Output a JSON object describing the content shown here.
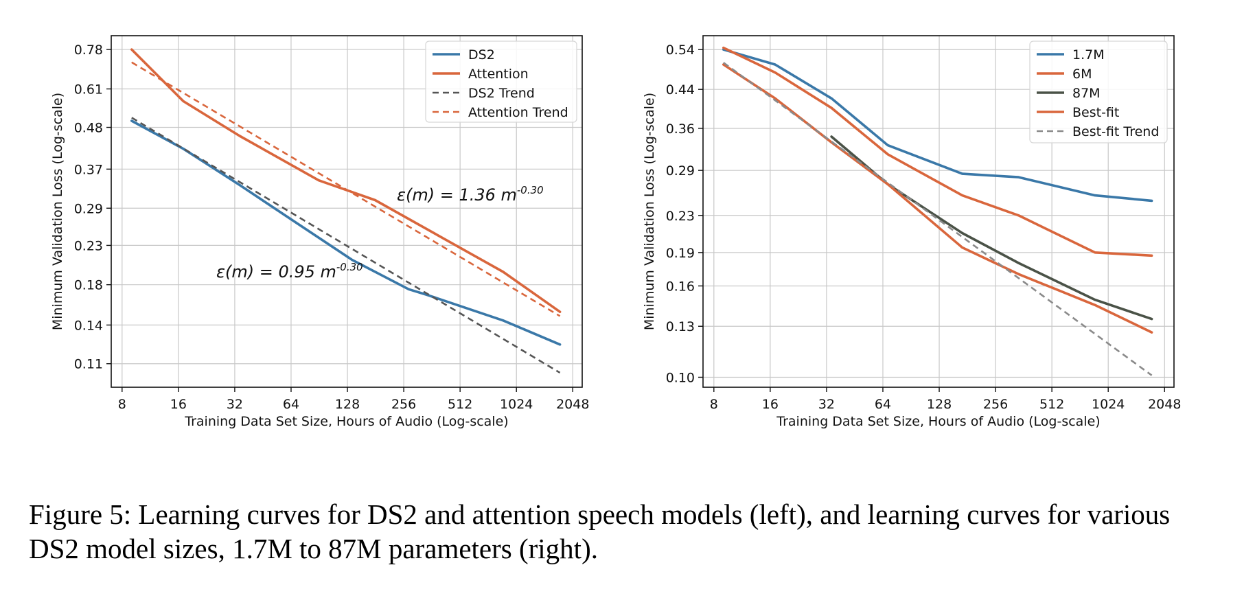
{
  "chart_data": [
    {
      "type": "line",
      "xlabel": "Training Data Set Size, Hours of Audio (Log-scale)",
      "ylabel": "Minimum Validation Loss (Log-scale)",
      "xscale": "log2",
      "yscale": "log",
      "xlim": [
        7,
        2300
      ],
      "ylim": [
        0.095,
        0.85
      ],
      "xticks": [
        8,
        16,
        32,
        64,
        128,
        256,
        512,
        1024,
        2048
      ],
      "xtick_labels": [
        "8",
        "16",
        "32",
        "64",
        "128",
        "256",
        "512",
        "1024",
        "2048"
      ],
      "yticks": [
        0.11,
        0.14,
        0.18,
        0.23,
        0.29,
        0.37,
        0.48,
        0.61,
        0.78
      ],
      "ytick_labels": [
        "0.11",
        "0.14",
        "0.18",
        "0.23",
        "0.29",
        "0.37",
        "0.48",
        "0.61",
        "0.78"
      ],
      "grid": true,
      "legend_position": "upper-right",
      "series": [
        {
          "name": "DS2",
          "color": "#3a78a8",
          "style": "solid",
          "x": [
            9,
            17,
            34,
            68,
            136,
            272,
            340,
            870,
            1750
          ],
          "y": [
            0.5,
            0.42,
            0.335,
            0.265,
            0.21,
            0.175,
            0.169,
            0.144,
            0.124
          ]
        },
        {
          "name": "Attention",
          "color": "#d9663c",
          "style": "solid",
          "x": [
            9,
            17,
            34,
            90,
            180,
            870,
            1750
          ],
          "y": [
            0.78,
            0.565,
            0.455,
            0.345,
            0.305,
            0.195,
            0.152
          ]
        },
        {
          "name": "DS2 Trend",
          "color": "#555555",
          "style": "dashed",
          "x": [
            9,
            1750
          ],
          "y": [
            0.51,
            0.104
          ]
        },
        {
          "name": "Attention Trend",
          "color": "#d9663c",
          "style": "dashed",
          "x": [
            9,
            1750
          ],
          "y": [
            0.72,
            0.148
          ]
        }
      ],
      "annotations": [
        {
          "label": "ε(m) = 1.36 m",
          "exponent": "-0.30"
        },
        {
          "label": "ε(m) = 0.95 m",
          "exponent": "-0.30"
        }
      ]
    },
    {
      "type": "line",
      "xlabel": "Training Data Set Size, Hours of Audio (Log-scale)",
      "ylabel": "Minimum Validation Loss (Log-scale)",
      "xscale": "log2",
      "yscale": "log",
      "xlim": [
        7,
        2300
      ],
      "ylim": [
        0.095,
        0.58
      ],
      "xticks": [
        8,
        16,
        32,
        64,
        128,
        256,
        512,
        1024,
        2048
      ],
      "xtick_labels": [
        "8",
        "16",
        "32",
        "64",
        "128",
        "256",
        "512",
        "1024",
        "2048"
      ],
      "yticks": [
        0.1,
        0.13,
        0.16,
        0.19,
        0.23,
        0.29,
        0.36,
        0.44,
        0.54
      ],
      "ytick_labels": [
        "0.10",
        "0.13",
        "0.16",
        "0.19",
        "0.23",
        "0.29",
        "0.36",
        "0.44",
        "0.54"
      ],
      "grid": true,
      "legend_position": "upper-right",
      "series": [
        {
          "name": "1.7M",
          "color": "#3a78a8",
          "style": "solid",
          "x": [
            9,
            17,
            34,
            68,
            170,
            340,
            870,
            1750
          ],
          "y": [
            0.54,
            0.5,
            0.42,
            0.33,
            0.285,
            0.28,
            0.255,
            0.248
          ]
        },
        {
          "name": "6M",
          "color": "#d9663c",
          "style": "solid",
          "x": [
            9,
            17,
            34,
            68,
            170,
            340,
            870,
            1750
          ],
          "y": [
            0.545,
            0.48,
            0.4,
            0.315,
            0.255,
            0.23,
            0.19,
            0.187
          ]
        },
        {
          "name": "87M",
          "color": "#4a5247",
          "style": "solid",
          "x": [
            34,
            68,
            170,
            340,
            870,
            1750
          ],
          "y": [
            0.345,
            0.27,
            0.21,
            0.18,
            0.149,
            0.135
          ]
        },
        {
          "name": "Best-fit",
          "color": "#d9663c",
          "style": "solid",
          "x": [
            9,
            17,
            34,
            68,
            170,
            340,
            870,
            1750
          ],
          "y": [
            0.5,
            0.42,
            0.335,
            0.27,
            0.195,
            0.17,
            0.145,
            0.126
          ]
        },
        {
          "name": "Best-fit Trend",
          "color": "#8a8a8a",
          "style": "dashed",
          "x": [
            9,
            1750
          ],
          "y": [
            0.505,
            0.101
          ]
        }
      ],
      "annotations": []
    }
  ],
  "caption": {
    "line1": "Figure 5: Learning curves for DS2 and attention speech models (left), and learning curves for various",
    "line2": "DS2 model sizes, 1.7M to 87M parameters (right)."
  }
}
